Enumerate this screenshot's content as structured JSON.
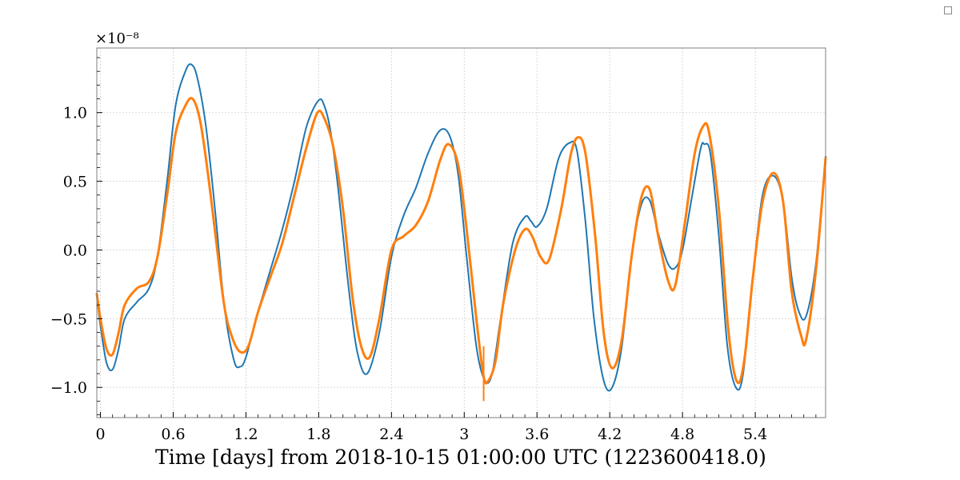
{
  "chart_data": {
    "type": "line",
    "title": "",
    "xlabel": "Time [days] from 2018-10-15 01:00:00 UTC (1223600418.0)",
    "ylabel": "",
    "y_offset_label": "×10⁻⁸",
    "xlim": [
      -0.03,
      5.98
    ],
    "ylim": [
      -1.22,
      1.47
    ],
    "x_ticks": [
      0,
      0.6,
      1.2,
      1.8,
      2.4,
      3,
      3.6,
      4.2,
      4.8,
      5.4
    ],
    "x_tick_labels": [
      "0",
      "0.6",
      "1.2",
      "1.8",
      "2.4",
      "3",
      "3.6",
      "4.2",
      "4.8",
      "5.4"
    ],
    "y_ticks": [
      -1.0,
      -0.5,
      0.0,
      0.5,
      1.0
    ],
    "y_tick_labels": [
      "−1.0",
      "−0.5",
      "0.0",
      "0.5",
      "1.0"
    ],
    "grid": true,
    "legend": "none",
    "colors": {
      "series1": "#1f77b4",
      "series2": "#ff7f0e"
    },
    "series": [
      {
        "color": "#1f77b4",
        "x": [
          -0.03,
          0.0,
          0.05,
          0.1,
          0.15,
          0.2,
          0.3,
          0.4,
          0.47,
          0.55,
          0.62,
          0.7,
          0.75,
          0.8,
          0.87,
          0.95,
          1.02,
          1.1,
          1.15,
          1.2,
          1.3,
          1.4,
          1.5,
          1.6,
          1.7,
          1.8,
          1.85,
          1.9,
          1.96,
          2.05,
          2.12,
          2.2,
          2.3,
          2.4,
          2.5,
          2.6,
          2.7,
          2.8,
          2.88,
          2.95,
          3.02,
          3.1,
          3.17,
          3.23,
          3.3,
          3.4,
          3.5,
          3.55,
          3.6,
          3.68,
          3.78,
          3.87,
          3.93,
          4.0,
          4.07,
          4.15,
          4.22,
          4.3,
          4.38,
          4.46,
          4.53,
          4.6,
          4.68,
          4.74,
          4.8,
          4.88,
          4.95,
          4.98,
          5.03,
          5.1,
          5.17,
          5.24,
          5.3,
          5.38,
          5.46,
          5.55,
          5.63,
          5.7,
          5.76,
          5.82,
          5.9,
          5.98
        ],
        "y": [
          -0.33,
          -0.55,
          -0.82,
          -0.87,
          -0.72,
          -0.5,
          -0.38,
          -0.28,
          -0.05,
          0.5,
          1.05,
          1.3,
          1.35,
          1.25,
          0.9,
          0.25,
          -0.4,
          -0.8,
          -0.85,
          -0.78,
          -0.45,
          -0.15,
          0.15,
          0.5,
          0.9,
          1.09,
          1.04,
          0.85,
          0.45,
          -0.3,
          -0.75,
          -0.9,
          -0.6,
          -0.05,
          0.25,
          0.45,
          0.7,
          0.87,
          0.83,
          0.55,
          -0.05,
          -0.7,
          -0.95,
          -0.9,
          -0.5,
          0.05,
          0.24,
          0.21,
          0.17,
          0.3,
          0.67,
          0.78,
          0.72,
          0.2,
          -0.5,
          -0.95,
          -1.0,
          -0.7,
          -0.05,
          0.33,
          0.36,
          0.12,
          -0.1,
          -0.13,
          0.0,
          0.4,
          0.74,
          0.77,
          0.7,
          0.1,
          -0.7,
          -1.0,
          -0.9,
          -0.2,
          0.4,
          0.54,
          0.35,
          -0.2,
          -0.45,
          -0.48,
          -0.1,
          0.68
        ]
      },
      {
        "color": "#ff7f0e",
        "x": [
          -0.03,
          0.0,
          0.05,
          0.1,
          0.15,
          0.2,
          0.3,
          0.4,
          0.47,
          0.55,
          0.62,
          0.7,
          0.76,
          0.82,
          0.88,
          0.95,
          1.02,
          1.08,
          1.15,
          1.22,
          1.3,
          1.4,
          1.5,
          1.6,
          1.7,
          1.79,
          1.85,
          1.92,
          2.0,
          2.08,
          2.15,
          2.22,
          2.3,
          2.4,
          2.5,
          2.6,
          2.7,
          2.8,
          2.87,
          2.95,
          3.02,
          3.1,
          3.16,
          3.2,
          3.26,
          3.32,
          3.42,
          3.5,
          3.56,
          3.63,
          3.7,
          3.8,
          3.88,
          3.94,
          4.0,
          4.08,
          4.15,
          4.22,
          4.3,
          4.38,
          4.46,
          4.53,
          4.6,
          4.68,
          4.74,
          4.82,
          4.9,
          4.97,
          5.02,
          5.1,
          5.18,
          5.25,
          5.31,
          5.38,
          5.46,
          5.55,
          5.63,
          5.7,
          5.78,
          5.82,
          5.9,
          5.98
        ],
        "y": [
          -0.32,
          -0.5,
          -0.72,
          -0.76,
          -0.6,
          -0.4,
          -0.28,
          -0.23,
          -0.05,
          0.4,
          0.85,
          1.05,
          1.1,
          0.95,
          0.6,
          0.1,
          -0.4,
          -0.62,
          -0.74,
          -0.7,
          -0.45,
          -0.2,
          0.05,
          0.4,
          0.75,
          1.0,
          0.95,
          0.75,
          0.3,
          -0.35,
          -0.7,
          -0.78,
          -0.5,
          0.0,
          0.1,
          0.18,
          0.35,
          0.65,
          0.77,
          0.62,
          0.15,
          -0.5,
          -0.92,
          -0.95,
          -0.8,
          -0.4,
          0.0,
          0.15,
          0.1,
          -0.05,
          -0.07,
          0.3,
          0.7,
          0.82,
          0.7,
          0.1,
          -0.6,
          -0.86,
          -0.65,
          -0.05,
          0.38,
          0.44,
          0.1,
          -0.22,
          -0.26,
          0.2,
          0.7,
          0.9,
          0.85,
          0.3,
          -0.6,
          -0.96,
          -0.8,
          -0.2,
          0.35,
          0.56,
          0.35,
          -0.3,
          -0.63,
          -0.65,
          -0.15,
          0.67
        ]
      }
    ]
  }
}
